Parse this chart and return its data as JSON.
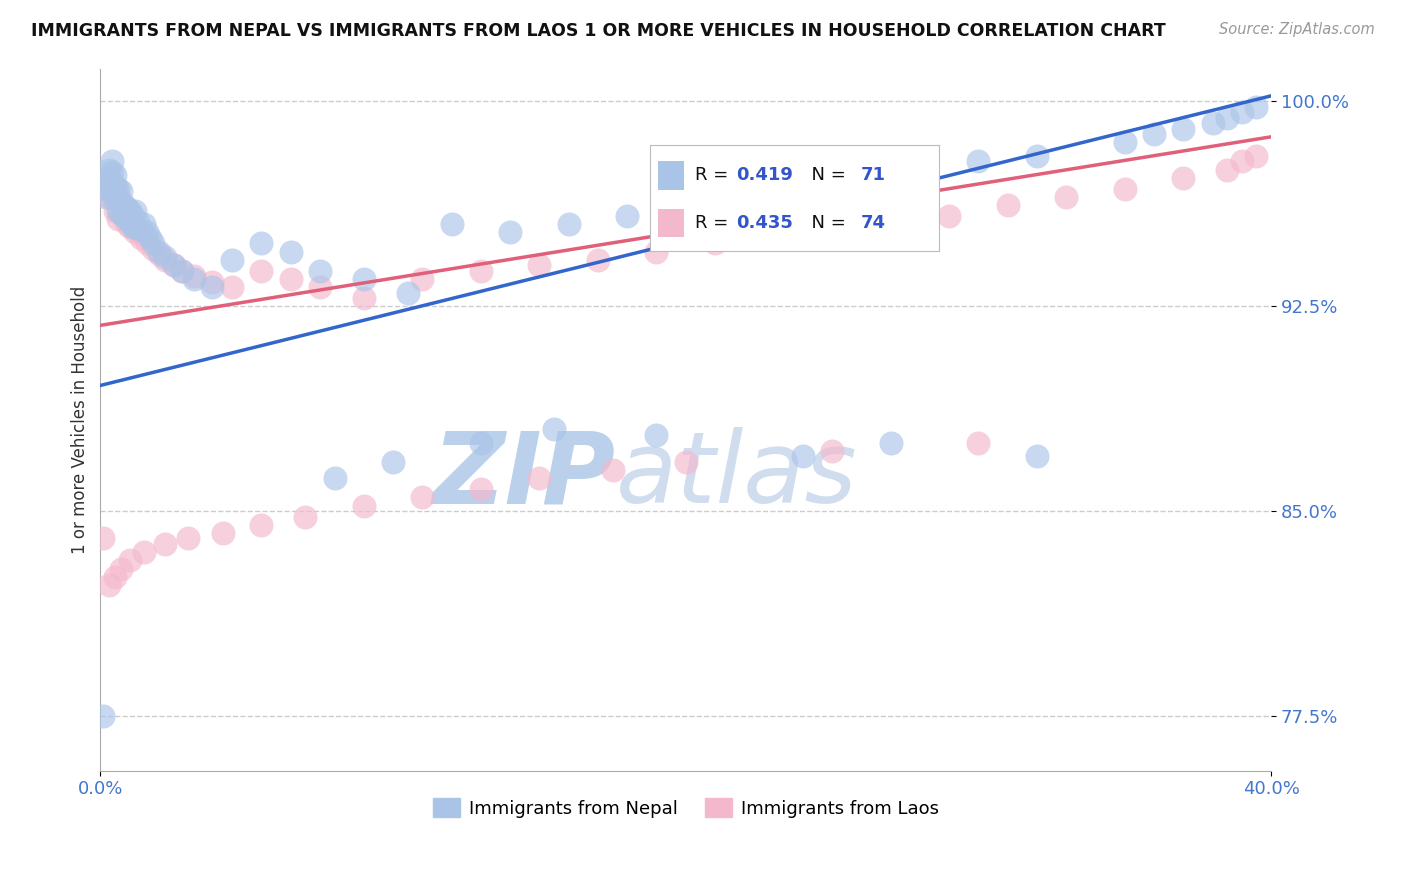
{
  "title": "IMMIGRANTS FROM NEPAL VS IMMIGRANTS FROM LAOS 1 OR MORE VEHICLES IN HOUSEHOLD CORRELATION CHART",
  "source": "Source: ZipAtlas.com",
  "ylabel_label": "1 or more Vehicles in Household",
  "series": [
    {
      "name": "Immigrants from Nepal",
      "color": "#aac4e8",
      "R": 0.419,
      "N": 71,
      "line_color": "#3366cc"
    },
    {
      "name": "Immigrants from Laos",
      "color": "#f4b8cc",
      "R": 0.435,
      "N": 74,
      "line_color": "#e0607a"
    }
  ],
  "watermark_zip": "ZIP",
  "watermark_atlas": "atlas",
  "watermark_color_zip": "#b8cce8",
  "watermark_color_atlas": "#c8d8e8",
  "background_color": "#ffffff",
  "grid_color": "#cccccc",
  "xlim": [
    0.0,
    0.4
  ],
  "ylim": [
    0.755,
    1.012
  ],
  "yticks": [
    0.775,
    0.85,
    0.925,
    1.0
  ],
  "ytick_labels": [
    "77.5%",
    "85.0%",
    "92.5%",
    "100.0%"
  ],
  "xtick_labels": [
    "0.0%",
    "40.0%"
  ],
  "xticks": [
    0.0,
    0.4
  ],
  "nepal_x": [
    0.001,
    0.002,
    0.002,
    0.003,
    0.003,
    0.003,
    0.004,
    0.004,
    0.004,
    0.005,
    0.005,
    0.005,
    0.006,
    0.006,
    0.006,
    0.007,
    0.007,
    0.007,
    0.008,
    0.008,
    0.009,
    0.009,
    0.01,
    0.01,
    0.011,
    0.011,
    0.012,
    0.012,
    0.013,
    0.014,
    0.015,
    0.016,
    0.017,
    0.018,
    0.02,
    0.022,
    0.025,
    0.028,
    0.032,
    0.038,
    0.045,
    0.055,
    0.065,
    0.075,
    0.09,
    0.105,
    0.12,
    0.14,
    0.16,
    0.18,
    0.2,
    0.22,
    0.25,
    0.28,
    0.3,
    0.32,
    0.35,
    0.36,
    0.37,
    0.38,
    0.385,
    0.39,
    0.395,
    0.32,
    0.27,
    0.24,
    0.19,
    0.155,
    0.13,
    0.1,
    0.08
  ],
  "nepal_y": [
    0.775,
    0.97,
    0.965,
    0.975,
    0.972,
    0.968,
    0.978,
    0.974,
    0.97,
    0.973,
    0.969,
    0.965,
    0.968,
    0.964,
    0.96,
    0.967,
    0.963,
    0.959,
    0.962,
    0.958,
    0.961,
    0.957,
    0.96,
    0.956,
    0.958,
    0.954,
    0.96,
    0.954,
    0.956,
    0.953,
    0.955,
    0.952,
    0.95,
    0.948,
    0.945,
    0.943,
    0.94,
    0.938,
    0.935,
    0.932,
    0.942,
    0.948,
    0.945,
    0.938,
    0.935,
    0.93,
    0.955,
    0.952,
    0.955,
    0.958,
    0.96,
    0.965,
    0.97,
    0.975,
    0.978,
    0.98,
    0.985,
    0.988,
    0.99,
    0.992,
    0.994,
    0.996,
    0.998,
    0.87,
    0.875,
    0.87,
    0.878,
    0.88,
    0.875,
    0.868,
    0.862
  ],
  "laos_x": [
    0.001,
    0.002,
    0.002,
    0.003,
    0.003,
    0.003,
    0.004,
    0.004,
    0.005,
    0.005,
    0.005,
    0.006,
    0.006,
    0.006,
    0.007,
    0.007,
    0.008,
    0.008,
    0.009,
    0.009,
    0.01,
    0.01,
    0.011,
    0.012,
    0.013,
    0.014,
    0.015,
    0.016,
    0.018,
    0.02,
    0.022,
    0.025,
    0.028,
    0.032,
    0.038,
    0.045,
    0.055,
    0.065,
    0.075,
    0.09,
    0.11,
    0.13,
    0.15,
    0.17,
    0.19,
    0.21,
    0.23,
    0.26,
    0.29,
    0.31,
    0.33,
    0.35,
    0.37,
    0.385,
    0.39,
    0.395,
    0.3,
    0.25,
    0.2,
    0.175,
    0.15,
    0.13,
    0.11,
    0.09,
    0.07,
    0.055,
    0.042,
    0.03,
    0.022,
    0.015,
    0.01,
    0.007,
    0.005,
    0.003
  ],
  "laos_y": [
    0.84,
    0.97,
    0.968,
    0.972,
    0.968,
    0.965,
    0.97,
    0.966,
    0.968,
    0.964,
    0.96,
    0.965,
    0.961,
    0.957,
    0.963,
    0.959,
    0.961,
    0.957,
    0.959,
    0.955,
    0.958,
    0.954,
    0.956,
    0.952,
    0.953,
    0.95,
    0.951,
    0.948,
    0.946,
    0.944,
    0.942,
    0.94,
    0.938,
    0.936,
    0.934,
    0.932,
    0.938,
    0.935,
    0.932,
    0.928,
    0.935,
    0.938,
    0.94,
    0.942,
    0.945,
    0.948,
    0.95,
    0.955,
    0.958,
    0.962,
    0.965,
    0.968,
    0.972,
    0.975,
    0.978,
    0.98,
    0.875,
    0.872,
    0.868,
    0.865,
    0.862,
    0.858,
    0.855,
    0.852,
    0.848,
    0.845,
    0.842,
    0.84,
    0.838,
    0.835,
    0.832,
    0.829,
    0.826,
    0.823
  ],
  "nepal_line_x0": 0.0,
  "nepal_line_x1": 0.4,
  "nepal_line_y0": 0.896,
  "nepal_line_y1": 1.002,
  "laos_line_x0": 0.0,
  "laos_line_x1": 0.4,
  "laos_line_y0": 0.918,
  "laos_line_y1": 0.987
}
